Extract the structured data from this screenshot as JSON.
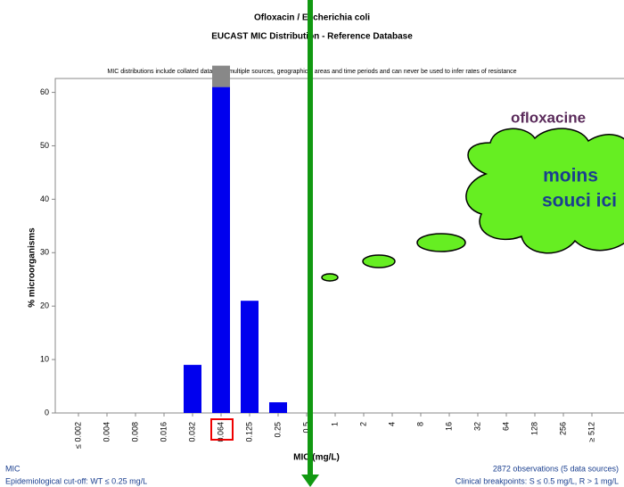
{
  "chart_data": {
    "type": "bar",
    "title": "Ofloxacin / Escherichia coli",
    "subtitle": "EUCAST MIC Distribution - Reference Database",
    "note": "MIC distributions include collated data from multiple sources, geographical areas and time periods and can never be used to infer rates of resistance",
    "y_label": "% microorganisms",
    "x_label": "MIC (mg/L)",
    "footer_left": [
      "MIC",
      "Epidemiological cut-off: WT ≤ 0.25 mg/L"
    ],
    "footer_right": [
      "2872 observations (5 data sources)",
      "Clinical breakpoints: S ≤ 0.5 mg/L, R > 1 mg/L"
    ],
    "annotations": [
      "ofloxacine",
      "moins",
      "souci ici"
    ],
    "categories": [
      "≤ 0.002",
      "0.004",
      "0.008",
      "0.016",
      "0.032",
      "0.064",
      "0.125",
      "0.25",
      "0.5",
      "1",
      "2",
      "4",
      "8",
      "16",
      "32",
      "64",
      "128",
      "256",
      "≥ 512"
    ],
    "series": [
      {
        "color": "#0000ee",
        "values": [
          0,
          0,
          0,
          0,
          9,
          61,
          21,
          2,
          0,
          0,
          0,
          0,
          0,
          0,
          0,
          0,
          0,
          0,
          0
        ]
      },
      {
        "color": "#888888",
        "values": [
          0,
          0,
          0,
          0,
          0,
          4,
          0,
          0,
          0,
          0,
          0,
          0,
          0,
          0,
          0,
          0,
          0,
          0,
          0
        ]
      }
    ],
    "stacked": true,
    "ylim": [
      0,
      62.6
    ],
    "yticks": [
      0,
      10,
      20,
      30,
      40,
      50,
      60
    ]
  }
}
